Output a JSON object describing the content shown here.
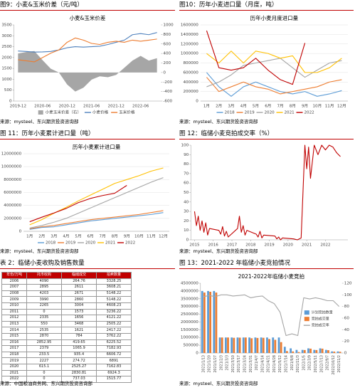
{
  "chart_data": [
    {
      "type": "line",
      "caption": "图9：小麦&玉米价差（元/吨）",
      "title": "小麦&玉米价差",
      "source": "来源：mysteel、东兴期货投资咨询部",
      "categories": [
        "2019-12",
        null,
        null,
        "2020-06",
        null,
        null,
        "2020-12",
        null,
        null,
        "2021-06",
        null,
        null,
        "2021-12",
        null,
        null,
        "2022-06",
        null,
        null
      ],
      "series": [
        {
          "name": "小麦玉米价差（右）",
          "type": "area",
          "axis": "y2",
          "color": "#a6a6a6",
          "values": [
            400,
            430,
            450,
            260,
            80,
            0,
            -250,
            -400,
            -320,
            -150,
            -80,
            -100,
            -50,
            100,
            250,
            350,
            250,
            300
          ]
        },
        {
          "name": "小麦价格",
          "color": "#4f81bd",
          "values": [
            2300,
            2280,
            2250,
            2260,
            2280,
            2350,
            2450,
            2500,
            2480,
            2500,
            2520,
            2600,
            2700,
            2800,
            3050,
            3100,
            3050,
            3150
          ]
        },
        {
          "name": "玉米价格",
          "color": "#ed7d31",
          "values": [
            1900,
            1850,
            1800,
            2000,
            2200,
            2350,
            2700,
            2900,
            2800,
            2650,
            2600,
            2700,
            2750,
            2700,
            2800,
            2750,
            2800,
            2850
          ]
        }
      ],
      "ylim": [
        0,
        3500
      ],
      "yticks": [
        0,
        500,
        1000,
        1500,
        2000,
        2500,
        3000,
        3500
      ],
      "y2lim": [
        -600,
        1000
      ],
      "y2ticks": [
        -600,
        -400,
        -200,
        0,
        200,
        400,
        600,
        800,
        1000
      ],
      "grid": false,
      "legend": "bottom"
    },
    {
      "type": "line",
      "caption": "图10：历年小麦进口量（月度，吨）",
      "title": "历年小麦月度进口量",
      "source": "来源：mysteel、东兴期货投资咨询部",
      "categories": [
        "1月",
        "2月",
        "3月",
        "4月",
        "5月",
        "6月",
        "7月",
        "8月",
        "9月",
        "10月",
        "11月",
        "12月"
      ],
      "series": [
        {
          "name": "2018",
          "color": "#5b9bd5",
          "values": [
            600000,
            300000,
            100000,
            300000,
            400000,
            300000,
            200000,
            150000,
            200000,
            100000,
            150000,
            220000
          ]
        },
        {
          "name": "2019",
          "color": "#ed7d31",
          "values": [
            500000,
            200000,
            300000,
            400000,
            300000,
            250000,
            150000,
            200000,
            250000,
            300000,
            400000,
            450000
          ]
        },
        {
          "name": "2020",
          "color": "#a5a5a5",
          "values": [
            300000,
            400000,
            550000,
            750000,
            800000,
            850000,
            900000,
            700000,
            500000,
            650000,
            800000,
            850000
          ]
        },
        {
          "name": "2021",
          "color": "#ffc000",
          "values": [
            1000000,
            800000,
            1050000,
            800000,
            1050000,
            1000000,
            900000,
            950000,
            600000,
            600000,
            700000,
            900000
          ]
        },
        {
          "name": "2022",
          "color": "#c00000",
          "values": [
            1480000,
            700000,
            650000,
            700000,
            900000,
            650000,
            450000,
            350000,
            1220000,
            null,
            null,
            null
          ]
        }
      ],
      "ylim": [
        0,
        1600000
      ],
      "yticks": [
        0,
        200000,
        400000,
        600000,
        800000,
        1000000,
        1200000,
        1400000,
        1600000
      ],
      "grid": true,
      "legend": "bottom"
    },
    {
      "type": "line",
      "caption": "图 11：历年小麦累计进口量（吨）",
      "title": "历年小麦累计进口量",
      "source": "来源：mysteel、东兴期货投资咨询部",
      "categories": [
        "1月",
        "2月",
        "3月",
        "4月",
        "5月",
        "6月",
        "7月",
        "8月",
        "9月",
        "10月",
        "11月",
        "12月"
      ],
      "series": [
        {
          "name": "2018",
          "color": "#5b9bd5",
          "values": [
            300000,
            600000,
            700000,
            1000000,
            1300000,
            1600000,
            1800000,
            2000000,
            2200000,
            2400000,
            2600000,
            2900000
          ]
        },
        {
          "name": "2019",
          "color": "#ed7d31",
          "values": [
            400000,
            700000,
            900000,
            1200000,
            1500000,
            1800000,
            2000000,
            2200000,
            2400000,
            2600000,
            2900000,
            3200000
          ]
        },
        {
          "name": "2020",
          "color": "#a5a5a5",
          "values": [
            500000,
            900000,
            1400000,
            2000000,
            2800000,
            3600000,
            4400000,
            5200000,
            6000000,
            6800000,
            7600000,
            8300000
          ]
        },
        {
          "name": "2021",
          "color": "#ffc000",
          "values": [
            1000000,
            1800000,
            2800000,
            3700000,
            4700000,
            5600000,
            6500000,
            7400000,
            8000000,
            8600000,
            9300000,
            9800000
          ]
        },
        {
          "name": "2022",
          "color": "#c00000",
          "values": [
            1480000,
            2180000,
            2830000,
            3530000,
            4430000,
            5080000,
            5530000,
            5880000,
            7100000,
            null,
            null,
            null
          ]
        }
      ],
      "ylim": [
        0,
        12000000
      ],
      "yticks": [
        0,
        2000000,
        4000000,
        6000000,
        8000000,
        10000000,
        12000000
      ],
      "grid": true,
      "legend": "bottom"
    },
    {
      "type": "line",
      "caption": "图 12：临储小麦竞拍成交率（%）",
      "source": "来源：mysteel、东兴期货投资咨询部",
      "x": [
        2015.0,
        2015.1,
        2015.2,
        2015.3,
        2015.4,
        2015.5,
        2015.6,
        2015.7,
        2015.8,
        2016.3,
        2016.4,
        2016.5,
        2016.6,
        2016.7,
        2016.8,
        2017.3,
        2017.4,
        2017.5,
        2017.6,
        2017.7,
        2017.8,
        2018.3,
        2018.4,
        2018.5,
        2018.6,
        2018.7,
        2019.3,
        2019.4,
        2019.5,
        2019.6,
        2019.7,
        2020.3,
        2020.5,
        2020.7,
        2020.9,
        2021.0,
        2021.1,
        2021.2,
        2021.4,
        2021.6,
        2021.8,
        2022.0,
        2022.2,
        2022.4,
        2022.6,
        2022.8
      ],
      "series": [
        {
          "name": "竞拍成交率",
          "color": "#c00000",
          "values": [
            30,
            15,
            25,
            10,
            20,
            8,
            18,
            5,
            12,
            10,
            6,
            14,
            4,
            9,
            3,
            12,
            25,
            8,
            15,
            5,
            10,
            6,
            3,
            9,
            2,
            5,
            4,
            1,
            3,
            0,
            2,
            1,
            0,
            2,
            100,
            75,
            98,
            65,
            100,
            90,
            100,
            95,
            100,
            98,
            92,
            88
          ]
        }
      ],
      "xlim": [
        2014.8,
        2023.2
      ],
      "xticks": [
        2015,
        2016,
        2017,
        2018,
        2019,
        2020,
        2021,
        2022
      ],
      "ylim": [
        0,
        100
      ],
      "yticks": [
        0,
        10,
        20,
        30,
        40,
        50,
        60,
        70,
        80,
        90,
        100
      ],
      "grid": false
    },
    {
      "type": "bar",
      "caption": "图 13：2021-2022 年临储小麦竞拍情况",
      "title": "2021-2022年临储小麦竞拍",
      "source": "来源：mysteel、东兴期货投资咨询部",
      "categories": [
        "2021/1/13",
        "2021/1/20",
        "2021/1/27",
        "2021/2/3",
        "2021/3/3",
        "2021/3/10",
        "2021/3/17",
        "2021/3/24",
        "2021/3/31",
        "2021/4/7",
        "2021/4/14",
        "2021/4/21",
        "2021/4/28",
        "2021/5/12",
        "2021/7/14",
        "2021/9/8",
        "2021/11/3",
        "2022/1/5",
        "2022/3/9",
        "2022/5/11",
        "2022/7/13",
        "2022/9/7",
        "2022/10/12",
        "2022/11/2"
      ],
      "series": [
        {
          "name": "计划竞拍数量",
          "color": "#5b9bd5",
          "values": [
            4000000,
            4000000,
            4000000,
            1000000,
            1000000,
            1000000,
            1000000,
            1000000,
            1000000,
            1000000,
            1000000,
            1000000,
            1000000,
            1000000,
            400000,
            300000,
            200000,
            200000,
            300000,
            200000,
            300000,
            200000,
            100000,
            100000
          ]
        },
        {
          "name": "竞拍成交量",
          "color": "#ed7d31",
          "values": [
            3900000,
            3950000,
            3900000,
            1000000,
            1000000,
            980000,
            990000,
            1000000,
            950000,
            970000,
            980000,
            900000,
            850000,
            700000,
            120000,
            100000,
            60000,
            190000,
            280000,
            190000,
            280000,
            180000,
            90000,
            80000
          ]
        },
        {
          "name": "竞拍成交率",
          "type": "line",
          "axis": "y2",
          "color": "#a5a5a5",
          "values": [
            97,
            99,
            97,
            100,
            100,
            98,
            99,
            100,
            95,
            97,
            98,
            90,
            85,
            70,
            30,
            33,
            30,
            95,
            93,
            95,
            93,
            90,
            90,
            80
          ]
        }
      ],
      "ylim": [
        0,
        4500000
      ],
      "yticks": [
        0,
        500000,
        1000000,
        1500000,
        2000000,
        2500000,
        3000000,
        3500000,
        4000000,
        4500000
      ],
      "y2lim": [
        0,
        120
      ],
      "y2ticks": [
        0,
        20,
        40,
        60,
        80,
        100,
        120
      ],
      "grid": false,
      "legend": "right"
    }
  ],
  "table": {
    "caption": "表 2：临储小麦收购及销售数量",
    "source": "来源：中国粮油商务网、东兴期货投资咨询部",
    "columns": [
      "年份/万吨",
      "托市收购",
      "临储成交",
      "拍卖数量"
    ],
    "rows": [
      [
        2006,
        4090,
        264.76,
        3328.25
      ],
      [
        2007,
        2895,
        2611,
        3608.21
      ],
      [
        2008,
        4203,
        2671,
        5148.22
      ],
      [
        2009,
        3990,
        2860,
        5148.22
      ],
      [
        2010,
        2265,
        3004,
        4608.23
      ],
      [
        2011,
        0,
        1573,
        3236.22
      ],
      [
        2012,
        2335,
        1656,
        4121.22
      ],
      [
        2013,
        550,
        3468,
        2505.22
      ],
      [
        2014,
        2535,
        1621,
        2417.22
      ],
      [
        2015,
        2870,
        784,
        3762.22
      ],
      [
        2016,
        2852.95,
        419.65,
        6225.52
      ],
      [
        2017,
        2379,
        1065.9,
        7182.93
      ],
      [
        2018,
        233.5,
        935.4,
        6606.72
      ],
      [
        2019,
        2227,
        274.72,
        6891
      ],
      [
        2020,
        615.1,
        2525.27,
        7162.83
      ],
      [
        2021,
        0,
        2830.81,
        6924.3
      ],
      [
        2022,
        0,
        737.03,
        1515.77
      ]
    ]
  }
}
